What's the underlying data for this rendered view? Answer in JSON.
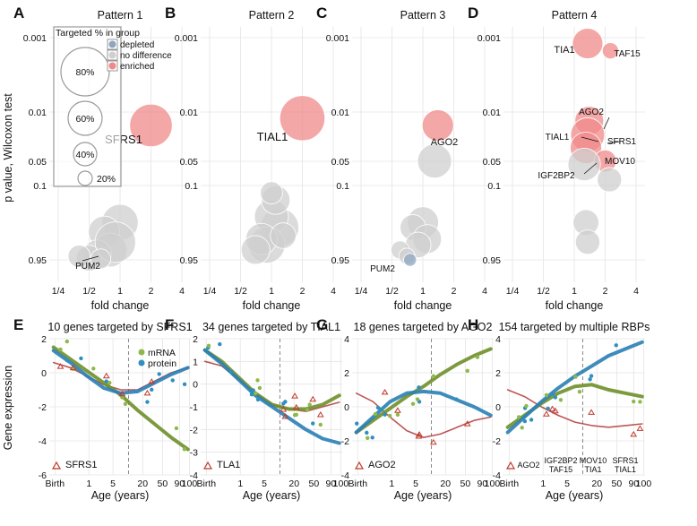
{
  "colors": {
    "depleted": "#8ea6c0",
    "no_difference": "#cfcfcf",
    "enriched": "#f08a8a",
    "mrna": "#8fb84a",
    "protein": "#2f8fc0",
    "red_tri": "#c0392b",
    "mrna_dark": "#6f8f2a",
    "protein_dark": "#2a7fb5",
    "red_line": "#b03a3a"
  },
  "chart_data": {
    "top": {
      "type": "scatter",
      "xlabel": "fold change",
      "ylabel": "p value, Wilcoxon test",
      "x_ticks": [
        "1/4",
        "1/2",
        "1",
        "2",
        "4"
      ],
      "y_ticks": [
        "0.001",
        "0.01",
        "0.05",
        "0.1",
        "0.95"
      ],
      "legend": {
        "title": "Targeted % in group",
        "entries": [
          "depleted",
          "no difference",
          "enriched"
        ],
        "size_labels": [
          "80%",
          "60%",
          "40%",
          "20%"
        ]
      },
      "panels": [
        {
          "letter": "A",
          "title": "Pattern 1",
          "labels": [
            {
              "text": "SFRS1"
            },
            {
              "text": "PUM2"
            }
          ],
          "points": [
            {
              "fc": 2.0,
              "p": 0.015,
              "pct": 55,
              "cls": "enriched"
            },
            {
              "fc": 1.0,
              "p": 0.3,
              "pct": 40,
              "cls": "no_difference"
            },
            {
              "fc": 0.7,
              "p": 0.4,
              "pct": 30,
              "cls": "no_difference"
            },
            {
              "fc": 0.8,
              "p": 0.7,
              "pct": 35,
              "cls": "no_difference"
            },
            {
              "fc": 0.6,
              "p": 0.8,
              "pct": 25,
              "cls": "no_difference"
            },
            {
              "fc": 0.5,
              "p": 0.9,
              "pct": 20,
              "cls": "no_difference"
            },
            {
              "fc": 0.9,
              "p": 0.55,
              "pct": 50,
              "cls": "no_difference"
            },
            {
              "fc": 0.4,
              "p": 0.85,
              "pct": 15,
              "cls": "no_difference"
            },
            {
              "fc": 0.65,
              "p": 0.92,
              "pct": 12,
              "cls": "no_difference"
            }
          ]
        },
        {
          "letter": "B",
          "title": "Pattern 2",
          "labels": [
            {
              "text": "TIAL1"
            }
          ],
          "points": [
            {
              "fc": 2.0,
              "p": 0.012,
              "pct": 62,
              "cls": "enriched"
            },
            {
              "fc": 1.2,
              "p": 0.35,
              "pct": 45,
              "cls": "no_difference"
            },
            {
              "fc": 1.0,
              "p": 0.25,
              "pct": 35,
              "cls": "no_difference"
            },
            {
              "fc": 0.9,
              "p": 0.6,
              "pct": 40,
              "cls": "no_difference"
            },
            {
              "fc": 1.1,
              "p": 0.15,
              "pct": 25,
              "cls": "no_difference"
            },
            {
              "fc": 0.8,
              "p": 0.5,
              "pct": 30,
              "cls": "no_difference"
            },
            {
              "fc": 1.3,
              "p": 0.45,
              "pct": 20,
              "cls": "no_difference"
            },
            {
              "fc": 0.7,
              "p": 0.7,
              "pct": 25,
              "cls": "no_difference"
            },
            {
              "fc": 1.0,
              "p": 0.12,
              "pct": 15,
              "cls": "no_difference"
            }
          ]
        },
        {
          "letter": "C",
          "title": "Pattern 3",
          "labels": [
            {
              "text": "AGO2"
            },
            {
              "text": "PUM2"
            }
          ],
          "points": [
            {
              "fc": 1.4,
              "p": 0.015,
              "pct": 30,
              "cls": "enriched"
            },
            {
              "fc": 1.3,
              "p": 0.045,
              "pct": 35,
              "cls": "no_difference"
            },
            {
              "fc": 1.0,
              "p": 0.3,
              "pct": 30,
              "cls": "no_difference"
            },
            {
              "fc": 0.8,
              "p": 0.35,
              "pct": 20,
              "cls": "no_difference"
            },
            {
              "fc": 1.1,
              "p": 0.5,
              "pct": 25,
              "cls": "no_difference"
            },
            {
              "fc": 0.9,
              "p": 0.6,
              "pct": 20,
              "cls": "no_difference"
            },
            {
              "fc": 0.6,
              "p": 0.7,
              "pct": 10,
              "cls": "no_difference"
            },
            {
              "fc": 0.7,
              "p": 0.85,
              "pct": 8,
              "cls": "no_difference"
            },
            {
              "fc": 0.75,
              "p": 0.95,
              "pct": 5,
              "cls": "depleted"
            }
          ]
        },
        {
          "letter": "D",
          "title": "Pattern 4",
          "labels": [
            {
              "text": "TIA1"
            },
            {
              "text": "TAF15"
            },
            {
              "text": "AGO2"
            },
            {
              "text": "TIAL1"
            },
            {
              "text": "SFRS1"
            },
            {
              "text": "MOV10"
            },
            {
              "text": "IGF2BP2"
            }
          ],
          "points": [
            {
              "fc": 1.35,
              "p": 0.0012,
              "pct": 28,
              "cls": "enriched"
            },
            {
              "fc": 2.25,
              "p": 0.0015,
              "pct": 8,
              "cls": "enriched"
            },
            {
              "fc": 1.4,
              "p": 0.013,
              "pct": 25,
              "cls": "enriched"
            },
            {
              "fc": 1.35,
              "p": 0.02,
              "pct": 35,
              "cls": "enriched"
            },
            {
              "fc": 1.3,
              "p": 0.03,
              "pct": 30,
              "cls": "enriched"
            },
            {
              "fc": 2.0,
              "p": 0.045,
              "pct": 15,
              "cls": "enriched"
            },
            {
              "fc": 1.25,
              "p": 0.05,
              "pct": 32,
              "cls": "no_difference"
            },
            {
              "fc": 2.2,
              "p": 0.08,
              "pct": 18,
              "cls": "no_difference"
            },
            {
              "fc": 1.3,
              "p": 0.3,
              "pct": 20,
              "cls": "no_difference"
            },
            {
              "fc": 1.35,
              "p": 0.55,
              "pct": 18,
              "cls": "no_difference"
            }
          ]
        }
      ]
    },
    "bottom": {
      "type": "line",
      "ylabel": "Gene expression",
      "xlabel": "Age (years)",
      "x_ticks": [
        "Birth",
        "1",
        "5",
        "20",
        "50",
        "90",
        "100"
      ],
      "panels": [
        {
          "letter": "E",
          "title": "10 genes targeted by SFRS1",
          "ylim": [
            -6,
            2
          ],
          "y_ticks": [
            2,
            0,
            -2,
            -4,
            -6
          ],
          "legend_entries": [
            "mRNA",
            "protein"
          ],
          "tri_labels": [
            "SFRS1"
          ],
          "mrna_curve": [
            1.5,
            0.8,
            0.1,
            -0.6,
            -1.3,
            -2.2,
            -3.0,
            -3.8,
            -4.5
          ],
          "protein_curve": [
            1.3,
            0.6,
            -0.2,
            -0.9,
            -1.2,
            -1.1,
            -0.6,
            -0.1,
            0.3
          ],
          "red_curve": [
            0.6,
            0.3,
            -0.2,
            -0.7,
            -1.0,
            -1.0,
            -0.5,
            0.0,
            0.3
          ]
        },
        {
          "letter": "F",
          "title": "34 genes targeted by TIAL1",
          "ylim": [
            -4,
            2
          ],
          "y_ticks": [
            2,
            1,
            0,
            -1,
            -2,
            -3,
            -4
          ],
          "legend_entries": [],
          "tri_labels": [
            "TLA1"
          ],
          "mrna_curve": [
            1.5,
            1.0,
            0.3,
            -0.4,
            -0.9,
            -1.1,
            -1.1,
            -0.9,
            -0.5
          ],
          "protein_curve": [
            1.5,
            0.9,
            0.2,
            -0.5,
            -1.0,
            -1.5,
            -2.0,
            -2.4,
            -2.6
          ],
          "red_curve": [
            1.0,
            0.8,
            0.2,
            -0.4,
            -0.9,
            -1.1,
            -1.2,
            -1.0,
            -0.8
          ]
        },
        {
          "letter": "G",
          "title": "18 genes targeted by AGO2",
          "ylim": [
            -4,
            4
          ],
          "y_ticks": [
            4,
            2,
            0,
            -2,
            -4
          ],
          "legend_entries": [],
          "tri_labels": [
            "AGO2"
          ],
          "mrna_curve": [
            -1.5,
            -0.8,
            -0.1,
            0.6,
            1.2,
            1.9,
            2.5,
            3.0,
            3.4
          ],
          "protein_curve": [
            -1.5,
            -0.6,
            0.3,
            0.8,
            0.9,
            0.8,
            0.4,
            0.0,
            -0.5
          ],
          "red_curve": [
            0.8,
            0.3,
            -0.6,
            -1.4,
            -1.8,
            -1.6,
            -1.2,
            -0.8,
            -0.6
          ]
        },
        {
          "letter": "H",
          "title": "154 targeted by multiple RBPs",
          "ylim": [
            -4,
            4
          ],
          "y_ticks": [
            4,
            2,
            0,
            -2,
            -4
          ],
          "legend_entries": [],
          "tri_labels": [
            "AGO2",
            "IGF2BP2\nTAF15",
            "MOV10\nTIA1",
            "SFRS1\nTIAL1"
          ],
          "mrna_curve": [
            -1.2,
            -0.5,
            0.2,
            0.8,
            1.2,
            1.3,
            1.0,
            0.8,
            0.6
          ],
          "protein_curve": [
            -1.5,
            -0.6,
            0.3,
            1.1,
            1.8,
            2.4,
            3.0,
            3.4,
            3.8
          ],
          "red_curve": [
            1.0,
            0.6,
            0.0,
            -0.5,
            -0.9,
            -1.1,
            -1.2,
            -1.1,
            -1.0
          ]
        }
      ]
    }
  }
}
